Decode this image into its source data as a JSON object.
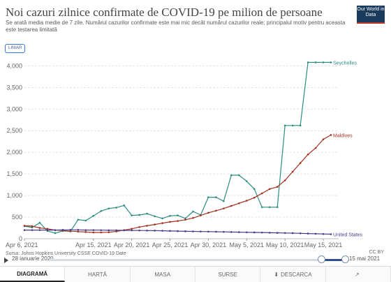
{
  "header": {
    "title": "Noi cazuri zilnice confirmate de COVID-19 pe milion de persoane",
    "subtitle": "Se arată media medie de 7 zile. Numărul cazurilor confirmate este mai mic decât numărul cazurilor reale; principalul motiv pentru aceasta este testarea limitată",
    "logo_text": "Our World in Data"
  },
  "controls": {
    "scale_toggle_label": "LINIAR"
  },
  "chart_data": {
    "type": "line",
    "yticks": [
      0,
      500,
      1000,
      1500,
      2000,
      2500,
      3000,
      3500,
      4000
    ],
    "ytick_labels": [
      "0",
      "500",
      "1,000",
      "1,500",
      "2,000",
      "2,500",
      "3,000",
      "3,500",
      "4,000"
    ],
    "ylim": [
      0,
      4200
    ],
    "x_start": "2021-04-06",
    "x_end": "2021-05-17",
    "xticks": [
      {
        "date": "2021-04-06",
        "label": "Apr 6, 2021"
      },
      {
        "date": "2021-04-15",
        "label": "Apr 15, 2021"
      },
      {
        "date": "2021-04-20",
        "label": "Apr 20, 2021"
      },
      {
        "date": "2021-04-25",
        "label": "Apr 25, 2021"
      },
      {
        "date": "2021-04-30",
        "label": "Apr 30, 2021"
      },
      {
        "date": "2021-05-05",
        "label": "May 5, 2021"
      },
      {
        "date": "2021-05-10",
        "label": "May 10, 2021"
      },
      {
        "date": "2021-05-15",
        "label": "May 15, 2021"
      }
    ],
    "series": [
      {
        "name": "Seychelles",
        "color": "#2a8c82",
        "x": [
          "2021-04-06",
          "2021-04-07",
          "2021-04-08",
          "2021-04-09",
          "2021-04-10",
          "2021-04-11",
          "2021-04-12",
          "2021-04-13",
          "2021-04-14",
          "2021-04-15",
          "2021-04-16",
          "2021-04-17",
          "2021-04-18",
          "2021-04-19",
          "2021-04-20",
          "2021-04-21",
          "2021-04-22",
          "2021-04-23",
          "2021-04-24",
          "2021-04-25",
          "2021-04-26",
          "2021-04-27",
          "2021-04-28",
          "2021-04-29",
          "2021-04-30",
          "2021-05-01",
          "2021-05-02",
          "2021-05-03",
          "2021-05-04",
          "2021-05-05",
          "2021-05-06",
          "2021-05-07",
          "2021-05-08",
          "2021-05-09",
          "2021-05-10",
          "2021-05-11",
          "2021-05-12",
          "2021-05-13",
          "2021-05-14",
          "2021-05-15",
          "2021-05-16"
        ],
        "y": [
          290,
          260,
          370,
          180,
          130,
          180,
          170,
          440,
          420,
          530,
          640,
          700,
          720,
          770,
          540,
          550,
          580,
          520,
          470,
          530,
          540,
          470,
          630,
          550,
          960,
          960,
          870,
          1470,
          1470,
          1330,
          1150,
          730,
          730,
          730,
          2620,
          2620,
          2620,
          4080,
          4080,
          4080,
          4080
        ]
      },
      {
        "name": "Maldives",
        "color": "#a0311f",
        "x": [
          "2021-04-06",
          "2021-04-07",
          "2021-04-08",
          "2021-04-09",
          "2021-04-10",
          "2021-04-11",
          "2021-04-12",
          "2021-04-13",
          "2021-04-14",
          "2021-04-15",
          "2021-04-16",
          "2021-04-17",
          "2021-04-18",
          "2021-04-19",
          "2021-04-20",
          "2021-04-21",
          "2021-04-22",
          "2021-04-23",
          "2021-04-24",
          "2021-04-25",
          "2021-04-26",
          "2021-04-27",
          "2021-04-28",
          "2021-04-29",
          "2021-04-30",
          "2021-05-01",
          "2021-05-02",
          "2021-05-03",
          "2021-05-04",
          "2021-05-05",
          "2021-05-06",
          "2021-05-07",
          "2021-05-08",
          "2021-05-09",
          "2021-05-10",
          "2021-05-11",
          "2021-05-12",
          "2021-05-13",
          "2021-05-14",
          "2021-05-15",
          "2021-05-16"
        ],
        "y": [
          300,
          290,
          250,
          230,
          200,
          190,
          175,
          165,
          155,
          145,
          145,
          150,
          170,
          200,
          230,
          270,
          300,
          330,
          360,
          390,
          410,
          440,
          480,
          540,
          600,
          650,
          700,
          760,
          820,
          880,
          950,
          1050,
          1150,
          1200,
          1350,
          1550,
          1750,
          1950,
          2100,
          2300,
          2400
        ]
      },
      {
        "name": "United States",
        "color": "#4a3c8c",
        "x": [
          "2021-04-06",
          "2021-04-07",
          "2021-04-08",
          "2021-04-09",
          "2021-04-10",
          "2021-04-11",
          "2021-04-12",
          "2021-04-13",
          "2021-04-14",
          "2021-04-15",
          "2021-04-16",
          "2021-04-17",
          "2021-04-18",
          "2021-04-19",
          "2021-04-20",
          "2021-04-21",
          "2021-04-22",
          "2021-04-23",
          "2021-04-24",
          "2021-04-25",
          "2021-04-26",
          "2021-04-27",
          "2021-04-28",
          "2021-04-29",
          "2021-04-30",
          "2021-05-01",
          "2021-05-02",
          "2021-05-03",
          "2021-05-04",
          "2021-05-05",
          "2021-05-06",
          "2021-05-07",
          "2021-05-08",
          "2021-05-09",
          "2021-05-10",
          "2021-05-11",
          "2021-05-12",
          "2021-05-13",
          "2021-05-14",
          "2021-05-15",
          "2021-05-16"
        ],
        "y": [
          200,
          200,
          200,
          200,
          200,
          205,
          205,
          205,
          200,
          200,
          198,
          196,
          195,
          194,
          193,
          191,
          189,
          187,
          184,
          180,
          176,
          172,
          169,
          167,
          165,
          162,
          158,
          155,
          152,
          149,
          146,
          143,
          139,
          136,
          133,
          130,
          125,
          120,
          115,
          110,
          105
        ]
      }
    ]
  },
  "footer": {
    "source": "Sursa: Johns Hopkins University CSSE COVID-19 Date",
    "license": "CC BY",
    "timeline_start": "28 ianuarie 2020",
    "timeline_end": "15 mai 2021"
  },
  "tabs": [
    {
      "label": "DIAGRAMĂ",
      "icon": ""
    },
    {
      "label": "HARTĂ",
      "icon": ""
    },
    {
      "label": "MASA",
      "icon": ""
    },
    {
      "label": "SURSE",
      "icon": ""
    },
    {
      "label": "DESCARCA",
      "icon": "download-icon"
    },
    {
      "label": "",
      "icon": "share-icon"
    }
  ]
}
